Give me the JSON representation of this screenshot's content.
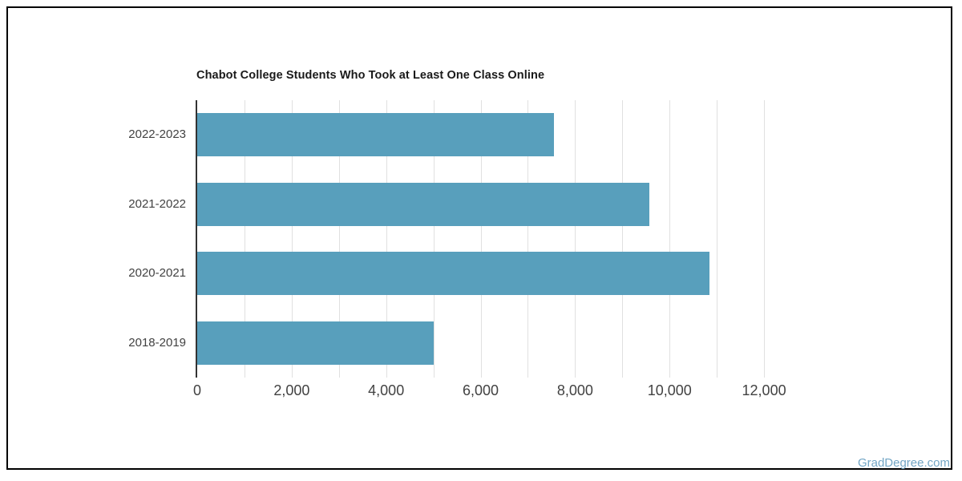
{
  "page": {
    "background": "#ffffff",
    "border_color": "#000000",
    "footer_brand": "GradDegree.com",
    "footer_brand_color": "#73a6c5"
  },
  "chart_data": {
    "type": "bar",
    "orientation": "horizontal",
    "title": "Chabot College Students Who Took at Least One Class Online",
    "categories": [
      "2022-2023",
      "2021-2022",
      "2020-2021",
      "2018-2019"
    ],
    "values": [
      7550,
      9580,
      10840,
      5000
    ],
    "xlabel": "",
    "ylabel": "",
    "xlim": [
      0,
      13000
    ],
    "x_tick_step": 1000,
    "x_tick_max": 12000,
    "x_label_step": 2000,
    "x_tick_labels": [
      "0",
      "2,000",
      "4,000",
      "6,000",
      "8,000",
      "10,000",
      "12,000"
    ],
    "grid": true,
    "legend": "none",
    "bar_color": "#589fbc",
    "gridline_color": "#e0e0e0",
    "axis_line_color": "#333333",
    "tick_label_color": "#424242",
    "title_color": "#1a1a1a"
  }
}
